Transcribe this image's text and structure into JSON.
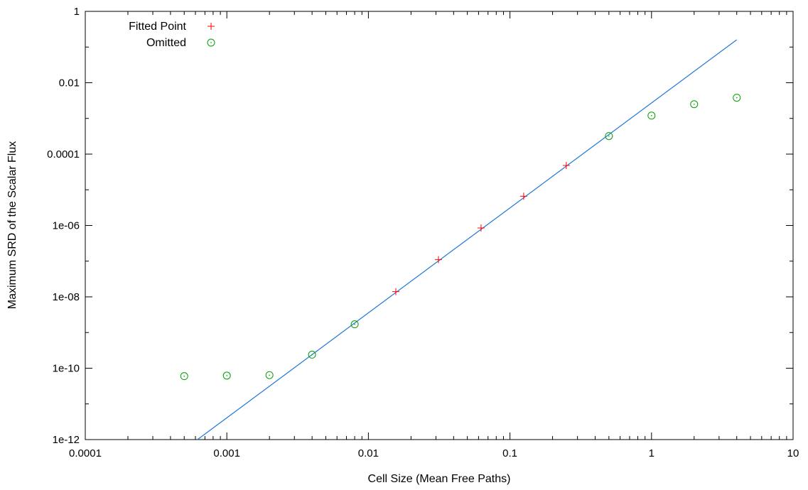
{
  "chart_data": {
    "type": "scatter",
    "xlabel": "Cell Size (Mean Free Paths)",
    "ylabel": "Maximum SRD of the Scalar Flux",
    "xscale": "log",
    "yscale": "log",
    "xlim": [
      0.0001,
      10
    ],
    "ylim": [
      1e-12,
      1
    ],
    "x_ticks": [
      {
        "value": 0.0001,
        "label": "0.0001"
      },
      {
        "value": 0.001,
        "label": "0.001"
      },
      {
        "value": 0.01,
        "label": "0.01"
      },
      {
        "value": 0.1,
        "label": "0.1"
      },
      {
        "value": 1,
        "label": "1"
      },
      {
        "value": 10,
        "label": "10"
      }
    ],
    "y_ticks": [
      {
        "value": 1e-12,
        "label": "1e-12"
      },
      {
        "value": 1e-10,
        "label": "1e-10"
      },
      {
        "value": 1e-08,
        "label": "1e-08"
      },
      {
        "value": 1e-06,
        "label": "1e-06"
      },
      {
        "value": 0.0001,
        "label": "0.0001"
      },
      {
        "value": 0.01,
        "label": "0.01"
      },
      {
        "value": 1,
        "label": "1"
      }
    ],
    "grid": false,
    "legend_position": "top-left",
    "series": [
      {
        "name": "Fitted Point",
        "kind": "points",
        "marker": "plus",
        "color": "#ff0000",
        "points": [
          {
            "x": 0.015625,
            "y": 1.4e-08
          },
          {
            "x": 0.03125,
            "y": 1.1e-07
          },
          {
            "x": 0.0625,
            "y": 8.5e-07
          },
          {
            "x": 0.125,
            "y": 6.6e-06
          },
          {
            "x": 0.25,
            "y": 4.8e-05
          }
        ]
      },
      {
        "name": "Omitted",
        "kind": "points",
        "marker": "circle",
        "color": "#00a000",
        "points": [
          {
            "x": 0.0005,
            "y": 6e-11
          },
          {
            "x": 0.001,
            "y": 6.2e-11
          },
          {
            "x": 0.002,
            "y": 6.4e-11
          },
          {
            "x": 0.004,
            "y": 2.4e-10
          },
          {
            "x": 0.008,
            "y": 1.7e-09
          },
          {
            "x": 0.5,
            "y": 0.00032
          },
          {
            "x": 1,
            "y": 0.0012
          },
          {
            "x": 2,
            "y": 0.0025
          },
          {
            "x": 4,
            "y": 0.0038
          }
        ]
      },
      {
        "kind": "fit-line",
        "color": "#1f77d8",
        "points": [
          {
            "x": 0.00062,
            "y": 1e-12
          },
          {
            "x": 4,
            "y": 0.16
          }
        ]
      }
    ]
  }
}
